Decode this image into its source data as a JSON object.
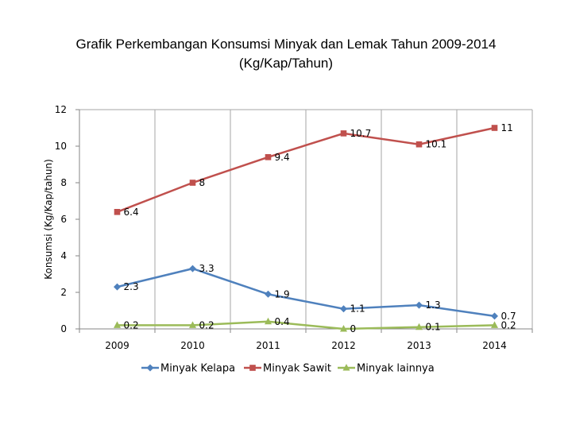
{
  "chart_data": {
    "type": "line",
    "title": "Grafik Perkembangan Konsumsi Minyak dan Lemak Tahun 2009-2014",
    "subtitle": "(Kg/Kap/Tahun)",
    "xlabel": "",
    "ylabel": "Konsumsi (Kg/Kap/tahun)",
    "categories": [
      "2009",
      "2010",
      "2011",
      "2012",
      "2013",
      "2014"
    ],
    "ylim": [
      0,
      12
    ],
    "yticks": [
      0,
      2,
      4,
      6,
      8,
      10,
      12
    ],
    "grid": "vertical",
    "legend_position": "bottom",
    "series": [
      {
        "name": "Minyak Kelapa",
        "color": "#4f81bd",
        "marker": "diamond",
        "values": [
          2.3,
          3.3,
          1.9,
          1.1,
          1.3,
          0.7
        ],
        "labels": [
          "2.3",
          "3.3",
          "1.9",
          "1.1",
          "1.3",
          "0.7"
        ]
      },
      {
        "name": "Minyak Sawit",
        "color": "#c0504d",
        "marker": "square",
        "values": [
          6.4,
          8,
          9.4,
          10.7,
          10.1,
          11
        ],
        "labels": [
          "6.4",
          "8",
          "9.4",
          "10.7",
          "10.1",
          "11"
        ]
      },
      {
        "name": "Minyak lainnya",
        "color": "#9bbb59",
        "marker": "triangle",
        "values": [
          0.2,
          0.2,
          0.4,
          0,
          0.1,
          0.2
        ],
        "labels": [
          "0.2",
          "0.2",
          "0.4",
          "0",
          "0.1",
          "0.2"
        ]
      }
    ]
  }
}
